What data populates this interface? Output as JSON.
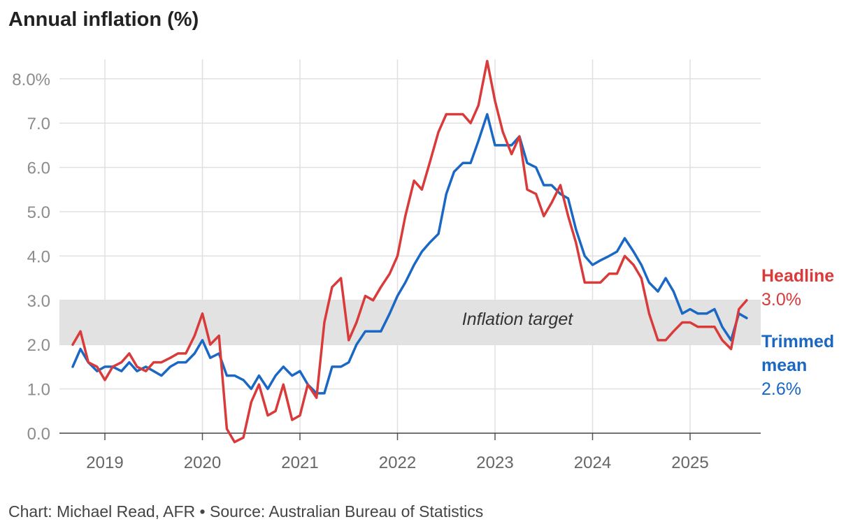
{
  "title": "Annual inflation (%)",
  "source": "Chart: Michael Read, AFR • Source: Australian Bureau of Statistics",
  "colors": {
    "headline": "#d93a3a",
    "trimmed": "#1a67c4",
    "target_band": "#e2e2e2",
    "grid": "#e0e0e0"
  },
  "labels": {
    "target": "Inflation target",
    "headline_name": "Headline",
    "headline_value": "3.0%",
    "trimmed_name_line1": "Trimmed",
    "trimmed_name_line2": "mean",
    "trimmed_value": "2.6%"
  },
  "chart_data": {
    "type": "line",
    "title": "Annual inflation (%)",
    "x_ticks": [
      "2019",
      "2020",
      "2021",
      "2022",
      "2023",
      "2024",
      "2025"
    ],
    "y_ticks": [
      "0.0",
      "1.0",
      "2.0",
      "3.0",
      "4.0",
      "5.0",
      "6.0",
      "7.0",
      "8.0%"
    ],
    "ylim": [
      0,
      8.5
    ],
    "grid": true,
    "target_band": [
      2,
      3
    ],
    "series": [
      {
        "name": "Headline",
        "x": [
          2018.67,
          2018.75,
          2018.83,
          2018.92,
          2019.0,
          2019.08,
          2019.17,
          2019.25,
          2019.33,
          2019.42,
          2019.5,
          2019.58,
          2019.67,
          2019.75,
          2019.83,
          2019.92,
          2020.0,
          2020.08,
          2020.17,
          2020.25,
          2020.33,
          2020.42,
          2020.5,
          2020.58,
          2020.67,
          2020.75,
          2020.83,
          2020.92,
          2021.0,
          2021.08,
          2021.17,
          2021.25,
          2021.33,
          2021.42,
          2021.5,
          2021.58,
          2021.67,
          2021.75,
          2021.83,
          2021.92,
          2022.0,
          2022.08,
          2022.17,
          2022.25,
          2022.33,
          2022.42,
          2022.5,
          2022.58,
          2022.67,
          2022.75,
          2022.83,
          2022.92,
          2023.0,
          2023.08,
          2023.17,
          2023.25,
          2023.33,
          2023.42,
          2023.5,
          2023.58,
          2023.67,
          2023.75,
          2023.83,
          2023.92,
          2024.0,
          2024.08,
          2024.17,
          2024.25,
          2024.33,
          2024.42,
          2024.5,
          2024.58,
          2024.67,
          2024.75,
          2024.83,
          2024.92,
          2025.0,
          2025.08,
          2025.17,
          2025.25,
          2025.33,
          2025.42,
          2025.5,
          2025.58
        ],
        "values": [
          2.0,
          2.3,
          1.6,
          1.5,
          1.2,
          1.5,
          1.6,
          1.8,
          1.5,
          1.4,
          1.6,
          1.6,
          1.7,
          1.8,
          1.8,
          2.2,
          2.7,
          2.0,
          2.2,
          0.1,
          -0.2,
          -0.1,
          0.7,
          1.1,
          0.4,
          0.5,
          1.1,
          0.3,
          0.4,
          1.1,
          0.8,
          2.5,
          3.3,
          3.5,
          2.1,
          2.5,
          3.1,
          3.0,
          3.3,
          3.6,
          4.0,
          4.9,
          5.7,
          5.5,
          6.1,
          6.8,
          7.2,
          7.2,
          7.2,
          7.0,
          7.4,
          8.4,
          7.5,
          6.8,
          6.3,
          6.7,
          5.5,
          5.4,
          4.9,
          5.2,
          5.6,
          4.9,
          4.3,
          3.4,
          3.4,
          3.4,
          3.6,
          3.6,
          4.0,
          3.8,
          3.5,
          2.7,
          2.1,
          2.1,
          2.3,
          2.5,
          2.5,
          2.4,
          2.4,
          2.4,
          2.1,
          1.9,
          2.8,
          3.0
        ]
      },
      {
        "name": "Trimmed mean",
        "x": [
          2018.67,
          2018.75,
          2018.83,
          2018.92,
          2019.0,
          2019.08,
          2019.17,
          2019.25,
          2019.33,
          2019.42,
          2019.5,
          2019.58,
          2019.67,
          2019.75,
          2019.83,
          2019.92,
          2020.0,
          2020.08,
          2020.17,
          2020.25,
          2020.33,
          2020.42,
          2020.5,
          2020.58,
          2020.67,
          2020.75,
          2020.83,
          2020.92,
          2021.0,
          2021.08,
          2021.17,
          2021.25,
          2021.33,
          2021.42,
          2021.5,
          2021.58,
          2021.67,
          2021.75,
          2021.83,
          2021.92,
          2022.0,
          2022.08,
          2022.17,
          2022.25,
          2022.33,
          2022.42,
          2022.5,
          2022.58,
          2022.67,
          2022.75,
          2022.83,
          2022.92,
          2023.0,
          2023.08,
          2023.17,
          2023.25,
          2023.33,
          2023.42,
          2023.5,
          2023.58,
          2023.67,
          2023.75,
          2023.83,
          2023.92,
          2024.0,
          2024.08,
          2024.17,
          2024.25,
          2024.33,
          2024.42,
          2024.5,
          2024.58,
          2024.67,
          2024.75,
          2024.83,
          2024.92,
          2025.0,
          2025.08,
          2025.17,
          2025.25,
          2025.33,
          2025.42,
          2025.5,
          2025.58
        ],
        "values": [
          1.5,
          1.9,
          1.6,
          1.4,
          1.5,
          1.5,
          1.4,
          1.6,
          1.4,
          1.5,
          1.4,
          1.3,
          1.5,
          1.6,
          1.6,
          1.8,
          2.1,
          1.7,
          1.8,
          1.3,
          1.3,
          1.2,
          1.0,
          1.3,
          1.0,
          1.3,
          1.5,
          1.3,
          1.4,
          1.1,
          0.9,
          0.9,
          1.5,
          1.5,
          1.6,
          2.0,
          2.3,
          2.3,
          2.3,
          2.7,
          3.1,
          3.4,
          3.8,
          4.1,
          4.3,
          4.5,
          5.4,
          5.9,
          6.1,
          6.1,
          6.6,
          7.2,
          6.5,
          6.5,
          6.5,
          6.7,
          6.1,
          6.0,
          5.6,
          5.6,
          5.4,
          5.3,
          4.6,
          4.0,
          3.8,
          3.9,
          4.0,
          4.1,
          4.4,
          4.1,
          3.8,
          3.4,
          3.2,
          3.5,
          3.2,
          2.7,
          2.8,
          2.7,
          2.7,
          2.8,
          2.4,
          2.1,
          2.7,
          2.6
        ]
      }
    ]
  }
}
